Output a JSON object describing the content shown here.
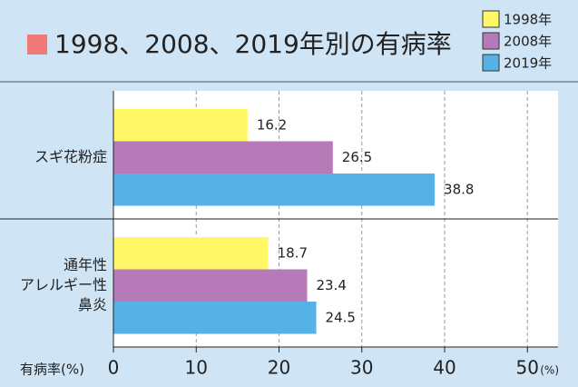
{
  "chart_data": {
    "type": "barh",
    "title": "1998、2008、2019年別の有病率",
    "categories": [
      "スギ花粉症",
      "通年性\nアレルギー性\n鼻炎"
    ],
    "series": [
      {
        "name": "1998年",
        "color": "#fff766",
        "values": [
          16.2,
          18.7
        ]
      },
      {
        "name": "2008年",
        "color": "#b57ab7",
        "values": [
          26.5,
          23.4
        ]
      },
      {
        "name": "2019年",
        "color": "#55b1e6",
        "values": [
          38.8,
          24.5
        ]
      }
    ],
    "x_label": "有病率(%)",
    "x_unit": "(%)",
    "xlim": [
      0,
      53.7
    ],
    "xticks": [
      0,
      10,
      20,
      30,
      40,
      50
    ],
    "grid": true,
    "legend": "top-right"
  }
}
